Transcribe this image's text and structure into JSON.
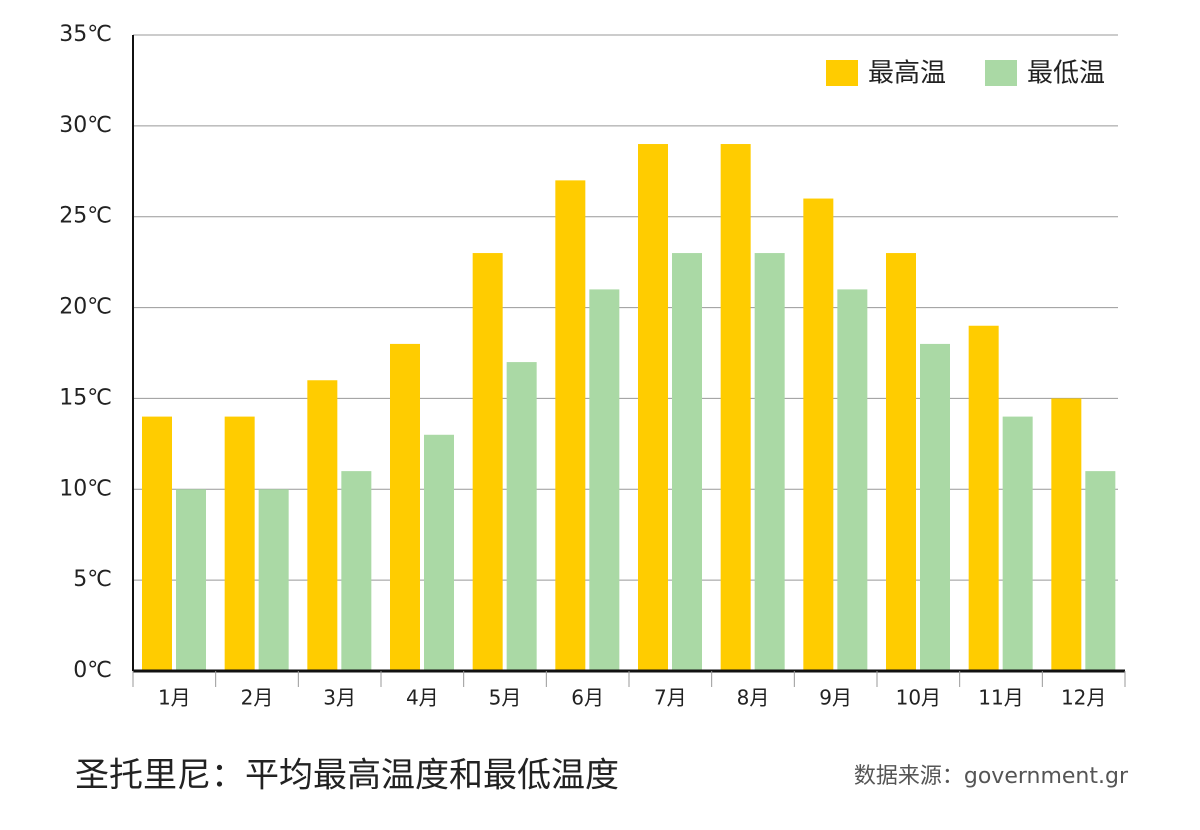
{
  "chart_data": {
    "type": "bar",
    "title": "圣托里尼：平均最高温度和最低温度",
    "source": "数据来源：government.gr",
    "categories": [
      "1月",
      "2月",
      "3月",
      "4月",
      "5月",
      "6月",
      "7月",
      "8月",
      "9月",
      "10月",
      "11月",
      "12月"
    ],
    "series": [
      {
        "name": "最高温",
        "color": "#ffcc00",
        "values": [
          14,
          14,
          16,
          18,
          23,
          27,
          29,
          29,
          26,
          23,
          19,
          15
        ]
      },
      {
        "name": "最低温",
        "color": "#aad9a5",
        "values": [
          10,
          10,
          11,
          13,
          17,
          21,
          23,
          23,
          21,
          18,
          14,
          11
        ]
      }
    ],
    "ylim": [
      0,
      35
    ],
    "yticks": [
      {
        "value": 0,
        "label": "0℃"
      },
      {
        "value": 5,
        "label": "5℃"
      },
      {
        "value": 10,
        "label": "10℃"
      },
      {
        "value": 15,
        "label": "15℃"
      },
      {
        "value": 20,
        "label": "20℃"
      },
      {
        "value": 25,
        "label": "25℃"
      },
      {
        "value": 30,
        "label": "30℃"
      },
      {
        "value": 35,
        "label": "35℃"
      }
    ],
    "grid": true,
    "legend": "top-right"
  }
}
